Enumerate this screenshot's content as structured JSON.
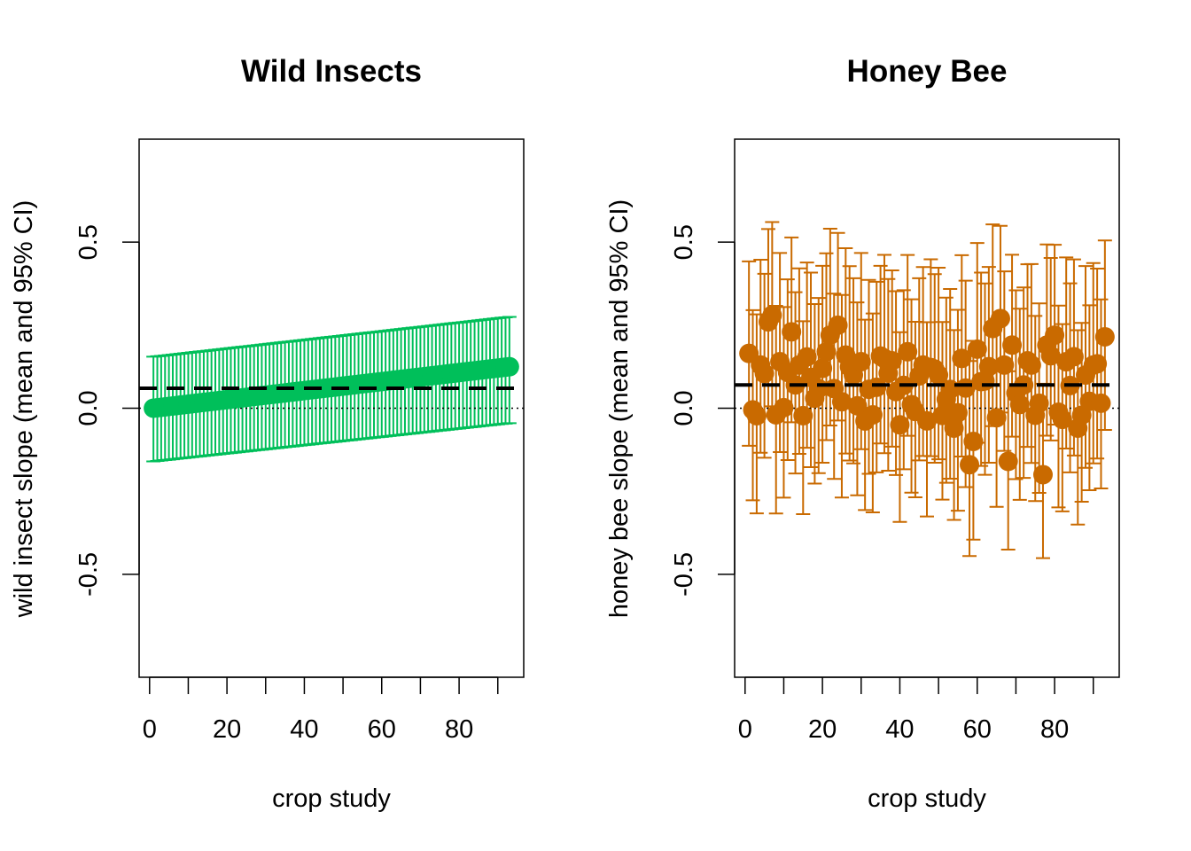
{
  "colors": {
    "wild": "#00BF5A",
    "honey": "#C96A00",
    "axis": "#000000"
  },
  "chart_data": [
    {
      "type": "scatter",
      "title": "Wild Insects",
      "xlabel": "crop study",
      "ylabel": "wild insect slope (mean and 95% CI)",
      "xlim": [
        -2.7,
        96.7
      ],
      "ylim": [
        -0.81,
        0.81
      ],
      "xticks": [
        0,
        20,
        40,
        60,
        80
      ],
      "xtick_labels": [
        "0",
        "20",
        "40",
        "60",
        "80"
      ],
      "yticks": [
        -0.5,
        0.0,
        0.5
      ],
      "ytick_labels": [
        "-0.5",
        "0.0",
        "0.5"
      ],
      "mean_line": 0.06,
      "zero_line": 0.0,
      "points": {
        "gen": "linear-ci",
        "n": 93,
        "y_start": 0.0,
        "y_end": 0.125,
        "lo_start": -0.16,
        "lo_end": -0.045,
        "hi_start": 0.155,
        "hi_end": 0.275
      }
    },
    {
      "type": "scatter",
      "title": "Honey Bee",
      "xlabel": "crop study",
      "ylabel": "honey bee slope (mean and 95% CI)",
      "xlim": [
        -2.7,
        96.7
      ],
      "ylim": [
        -0.81,
        0.81
      ],
      "xticks": [
        0,
        20,
        40,
        60,
        80
      ],
      "xtick_labels": [
        "0",
        "20",
        "40",
        "60",
        "80"
      ],
      "yticks": [
        -0.5,
        0.0,
        0.5
      ],
      "ytick_labels": [
        "-0.5",
        "0.0",
        "0.5"
      ],
      "mean_line": 0.07,
      "zero_line": 0.0,
      "points": {
        "gen": "pseudo-random",
        "n": 93,
        "seed": 7,
        "center": 0.07,
        "spread": 0.11,
        "ci_low": 0.25,
        "ci_high": 0.3,
        "highlights": [
          [
            1,
            0.165
          ],
          [
            2,
            -0.005
          ],
          [
            4,
            0.13
          ],
          [
            6,
            0.26
          ],
          [
            7,
            0.28
          ],
          [
            8,
            -0.02
          ],
          [
            9,
            0.14
          ],
          [
            12,
            0.23
          ],
          [
            13,
            0.07
          ],
          [
            18,
            0.03
          ],
          [
            20,
            0.12
          ],
          [
            22,
            0.22
          ],
          [
            24,
            0.25
          ],
          [
            26,
            0.16
          ],
          [
            28,
            0.1
          ],
          [
            30,
            0.14
          ],
          [
            33,
            -0.02
          ],
          [
            36,
            0.15
          ],
          [
            39,
            0.05
          ],
          [
            40,
            -0.05
          ],
          [
            42,
            0.17
          ],
          [
            46,
            0.13
          ],
          [
            50,
            0.1
          ],
          [
            54,
            -0.06
          ],
          [
            56,
            0.15
          ],
          [
            58,
            -0.17
          ],
          [
            59,
            -0.1
          ],
          [
            61,
            0.08
          ],
          [
            64,
            0.24
          ],
          [
            66,
            0.27
          ],
          [
            67,
            0.13
          ],
          [
            68,
            -0.16
          ],
          [
            69,
            0.19
          ],
          [
            72,
            0.07
          ],
          [
            74,
            0.13
          ],
          [
            77,
            -0.2
          ],
          [
            78,
            0.19
          ],
          [
            80,
            0.22
          ],
          [
            83,
            0.14
          ],
          [
            86,
            -0.06
          ],
          [
            88,
            0.1
          ],
          [
            90,
            0.13
          ],
          [
            92,
            0.015
          ],
          [
            93,
            0.215
          ]
        ]
      }
    }
  ]
}
